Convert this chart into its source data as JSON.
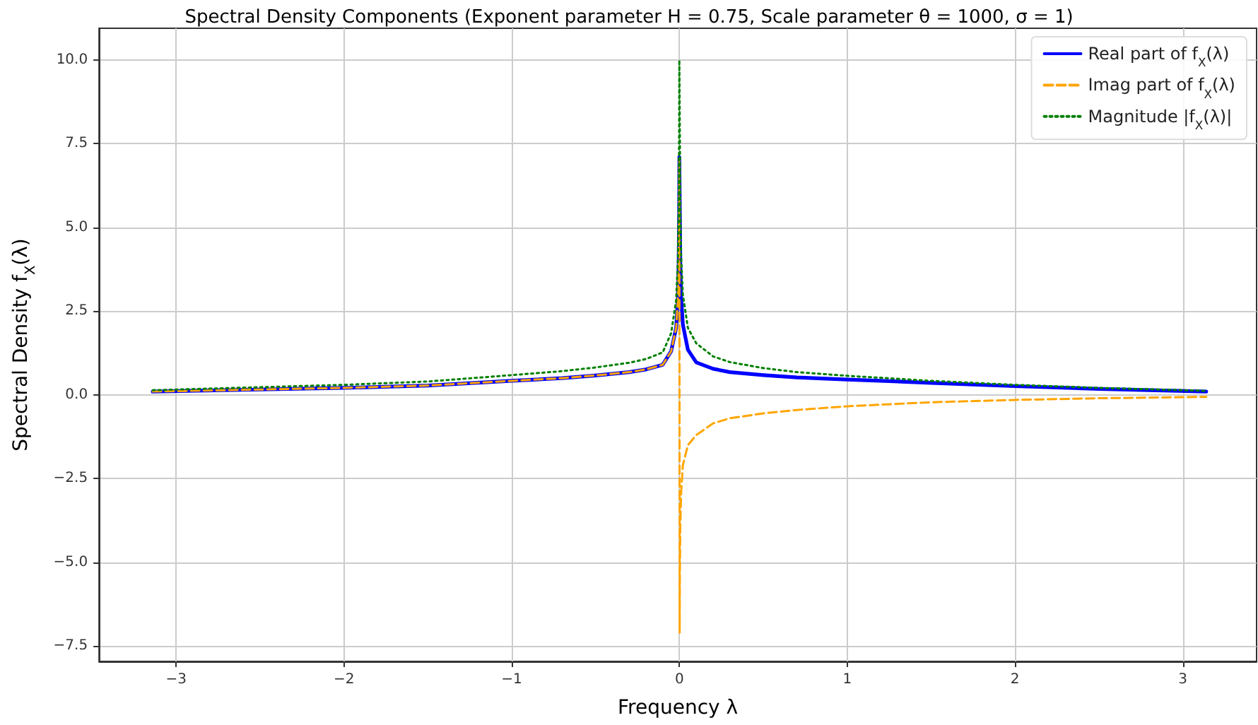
{
  "chart_data": {
    "type": "line",
    "title": "Spectral Density Components (Exponent parameter H = 0.75, Scale parameter θ = 1000, σ = 1)",
    "xlabel": "Frequency λ",
    "ylabel": "Spectral Density f$_{X}$(λ)",
    "xlim": [
      -3.46,
      3.44
    ],
    "ylim": [
      -7.96,
      10.95
    ],
    "xticks": [
      -3,
      -2,
      -1,
      0,
      1,
      2,
      3
    ],
    "yticks": [
      {
        "value": -7.5,
        "label": "−7.5"
      },
      {
        "value": -5,
        "label": "−5.0"
      },
      {
        "value": -2.5,
        "label": "−2.5"
      },
      {
        "value": 0,
        "label": "0.0"
      },
      {
        "value": 2.5,
        "label": "2.5"
      },
      {
        "value": 5,
        "label": "5.0"
      },
      {
        "value": 7.5,
        "label": "7.5"
      },
      {
        "value": 10,
        "label": "10.0"
      }
    ],
    "grid": true,
    "legend": "top right",
    "marker": "none",
    "series": [
      {
        "name": "Real part of f$_{X}$(λ)",
        "color": "#0000ff",
        "line_style": "solid",
        "x": [
          -3.14,
          -2.5,
          -2,
          -1.5,
          -1,
          -0.7,
          -0.5,
          -0.3,
          -0.2,
          -0.1,
          -0.05,
          -0.02,
          -0.01,
          -0.005,
          -0.002,
          -0.001,
          0.001,
          0.002,
          0.005,
          0.01,
          0.02,
          0.05,
          0.1,
          0.2,
          0.3,
          0.5,
          0.7,
          1,
          1.5,
          2,
          2.5,
          3.14
        ],
        "values": [
          0.1,
          0.16,
          0.21,
          0.28,
          0.42,
          0.5,
          0.58,
          0.68,
          0.76,
          0.9,
          1.3,
          2.0,
          2.8,
          3.9,
          5.5,
          7.1,
          7.1,
          5.5,
          3.9,
          2.9,
          2.1,
          1.35,
          0.97,
          0.78,
          0.68,
          0.59,
          0.52,
          0.46,
          0.36,
          0.26,
          0.18,
          0.1
        ]
      },
      {
        "name": "Imag part of f$_{X}$(λ)",
        "color": "#ffa500",
        "line_style": "dashed",
        "x": [
          -3.14,
          -2.5,
          -2,
          -1.5,
          -1,
          -0.7,
          -0.5,
          -0.3,
          -0.2,
          -0.1,
          -0.05,
          -0.02,
          -0.01,
          -0.005,
          -0.002,
          -0.001,
          0.001,
          0.002,
          0.005,
          0.01,
          0.02,
          0.05,
          0.1,
          0.2,
          0.3,
          0.5,
          0.7,
          1,
          1.5,
          2,
          2.5,
          3.14
        ],
        "values": [
          0.1,
          0.16,
          0.21,
          0.28,
          0.42,
          0.5,
          0.58,
          0.68,
          0.76,
          0.9,
          1.3,
          2.0,
          2.8,
          3.9,
          5.5,
          7.1,
          -7.1,
          -5.5,
          -3.9,
          -2.9,
          -2.1,
          -1.5,
          -1.2,
          -0.85,
          -0.7,
          -0.55,
          -0.45,
          -0.34,
          -0.22,
          -0.15,
          -0.1,
          -0.06
        ]
      },
      {
        "name": "Magnitude |f$_{X}$(λ)|",
        "color": "#008000",
        "line_style": "dotted",
        "x": [
          -3.14,
          -2.5,
          -2,
          -1.5,
          -1,
          -0.7,
          -0.5,
          -0.3,
          -0.2,
          -0.1,
          -0.05,
          -0.02,
          -0.01,
          -0.005,
          -0.002,
          -0.001,
          0.001,
          0.002,
          0.005,
          0.01,
          0.02,
          0.05,
          0.1,
          0.2,
          0.3,
          0.5,
          0.7,
          1,
          1.5,
          2,
          2.5,
          3.14
        ],
        "values": [
          0.14,
          0.23,
          0.3,
          0.4,
          0.59,
          0.71,
          0.82,
          0.96,
          1.07,
          1.27,
          1.84,
          2.83,
          3.96,
          5.5,
          7.8,
          10.0,
          10.0,
          7.8,
          5.5,
          4.1,
          3.0,
          2.0,
          1.54,
          1.15,
          0.98,
          0.8,
          0.68,
          0.57,
          0.42,
          0.3,
          0.21,
          0.12
        ]
      }
    ]
  }
}
